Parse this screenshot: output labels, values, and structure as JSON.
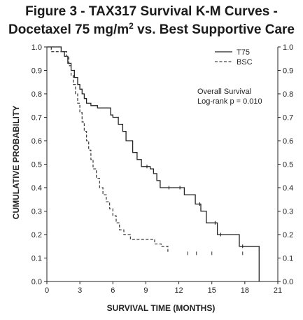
{
  "title": {
    "line1": "Figure 3 - TAX317 Survival K-M Curves -",
    "line2_pre": "Docetaxel 75 mg/m",
    "line2_sup": "2",
    "line2_post": " vs. Best Supportive Care"
  },
  "chart_data": {
    "type": "line",
    "xlabel": "SURVIVAL TIME (MONTHS)",
    "ylabel": "CUMULATIVE PROBABILITY",
    "xlim": [
      0,
      21
    ],
    "ylim": [
      0,
      1
    ],
    "x_ticks": [
      "0",
      "3",
      "6",
      "9",
      "12",
      "15",
      "18",
      "21"
    ],
    "y_ticks": [
      "0.0",
      "0.1",
      "0.2",
      "0.3",
      "0.4",
      "0.5",
      "0.6",
      "0.7",
      "0.8",
      "0.9",
      "1.0"
    ],
    "grid": false,
    "legend": "top-right",
    "annotation": [
      "Overall Survival",
      "Log-rank p = 0.010"
    ],
    "series": [
      {
        "name": "T75",
        "style": "solid",
        "color": "#222222",
        "points": [
          [
            0,
            1.0
          ],
          [
            1.3,
            1.0
          ],
          [
            1.3,
            0.98
          ],
          [
            1.6,
            0.98
          ],
          [
            1.6,
            0.96
          ],
          [
            1.9,
            0.96
          ],
          [
            1.9,
            0.93
          ],
          [
            2.2,
            0.93
          ],
          [
            2.2,
            0.9
          ],
          [
            2.5,
            0.9
          ],
          [
            2.5,
            0.87
          ],
          [
            2.8,
            0.87
          ],
          [
            2.8,
            0.84
          ],
          [
            3.0,
            0.84
          ],
          [
            3.0,
            0.82
          ],
          [
            3.2,
            0.82
          ],
          [
            3.2,
            0.8
          ],
          [
            3.4,
            0.8
          ],
          [
            3.4,
            0.78
          ],
          [
            3.6,
            0.78
          ],
          [
            3.6,
            0.76
          ],
          [
            4.0,
            0.76
          ],
          [
            4.0,
            0.75
          ],
          [
            4.6,
            0.75
          ],
          [
            4.6,
            0.74
          ],
          [
            5.8,
            0.74
          ],
          [
            5.8,
            0.71
          ],
          [
            6.0,
            0.71
          ],
          [
            6.0,
            0.7
          ],
          [
            6.5,
            0.7
          ],
          [
            6.5,
            0.67
          ],
          [
            6.9,
            0.67
          ],
          [
            6.9,
            0.64
          ],
          [
            7.2,
            0.64
          ],
          [
            7.2,
            0.6
          ],
          [
            7.8,
            0.6
          ],
          [
            7.8,
            0.55
          ],
          [
            8.2,
            0.55
          ],
          [
            8.2,
            0.52
          ],
          [
            8.6,
            0.52
          ],
          [
            8.6,
            0.49
          ],
          [
            9.4,
            0.49
          ],
          [
            9.4,
            0.48
          ],
          [
            9.7,
            0.48
          ],
          [
            9.7,
            0.46
          ],
          [
            10.0,
            0.46
          ],
          [
            10.0,
            0.43
          ],
          [
            10.3,
            0.43
          ],
          [
            10.3,
            0.4
          ],
          [
            12.5,
            0.4
          ],
          [
            12.5,
            0.37
          ],
          [
            13.5,
            0.37
          ],
          [
            13.5,
            0.33
          ],
          [
            14.0,
            0.33
          ],
          [
            14.0,
            0.3
          ],
          [
            14.5,
            0.3
          ],
          [
            14.5,
            0.25
          ],
          [
            15.5,
            0.25
          ],
          [
            15.5,
            0.2
          ],
          [
            17.5,
            0.2
          ],
          [
            17.5,
            0.15
          ],
          [
            19.3,
            0.15
          ],
          [
            19.3,
            0.0
          ]
        ],
        "censors": [
          [
            9.1,
            0.49
          ],
          [
            11.1,
            0.4
          ],
          [
            12.1,
            0.4
          ],
          [
            13.9,
            0.33
          ],
          [
            15.3,
            0.25
          ],
          [
            15.8,
            0.2
          ],
          [
            17.8,
            0.15
          ]
        ]
      },
      {
        "name": "BSC",
        "style": "dashed",
        "color": "#444444",
        "points": [
          [
            0,
            1.0
          ],
          [
            0.4,
            1.0
          ],
          [
            0.4,
            0.98
          ],
          [
            1.8,
            0.98
          ],
          [
            1.8,
            0.96
          ],
          [
            2.0,
            0.96
          ],
          [
            2.0,
            0.92
          ],
          [
            2.2,
            0.92
          ],
          [
            2.2,
            0.88
          ],
          [
            2.4,
            0.88
          ],
          [
            2.4,
            0.84
          ],
          [
            2.6,
            0.84
          ],
          [
            2.6,
            0.8
          ],
          [
            2.8,
            0.8
          ],
          [
            2.8,
            0.76
          ],
          [
            3.0,
            0.76
          ],
          [
            3.0,
            0.72
          ],
          [
            3.2,
            0.72
          ],
          [
            3.2,
            0.68
          ],
          [
            3.4,
            0.68
          ],
          [
            3.4,
            0.64
          ],
          [
            3.6,
            0.64
          ],
          [
            3.6,
            0.6
          ],
          [
            3.8,
            0.6
          ],
          [
            3.8,
            0.56
          ],
          [
            4.0,
            0.56
          ],
          [
            4.0,
            0.52
          ],
          [
            4.2,
            0.52
          ],
          [
            4.2,
            0.48
          ],
          [
            4.5,
            0.48
          ],
          [
            4.5,
            0.44
          ],
          [
            4.8,
            0.44
          ],
          [
            4.8,
            0.4
          ],
          [
            5.1,
            0.4
          ],
          [
            5.1,
            0.37
          ],
          [
            5.4,
            0.37
          ],
          [
            5.4,
            0.34
          ],
          [
            5.7,
            0.34
          ],
          [
            5.7,
            0.31
          ],
          [
            6.0,
            0.31
          ],
          [
            6.0,
            0.28
          ],
          [
            6.3,
            0.28
          ],
          [
            6.3,
            0.25
          ],
          [
            6.6,
            0.25
          ],
          [
            6.6,
            0.22
          ],
          [
            7.0,
            0.22
          ],
          [
            7.0,
            0.2
          ],
          [
            7.6,
            0.2
          ],
          [
            7.6,
            0.18
          ],
          [
            9.8,
            0.18
          ],
          [
            9.8,
            0.16
          ],
          [
            10.4,
            0.16
          ],
          [
            10.4,
            0.15
          ],
          [
            11.0,
            0.15
          ],
          [
            11.0,
            0.12
          ]
        ],
        "censors": [
          [
            12.8,
            0.12
          ],
          [
            13.6,
            0.12
          ],
          [
            15.0,
            0.12
          ],
          [
            17.8,
            0.12
          ]
        ]
      }
    ]
  }
}
